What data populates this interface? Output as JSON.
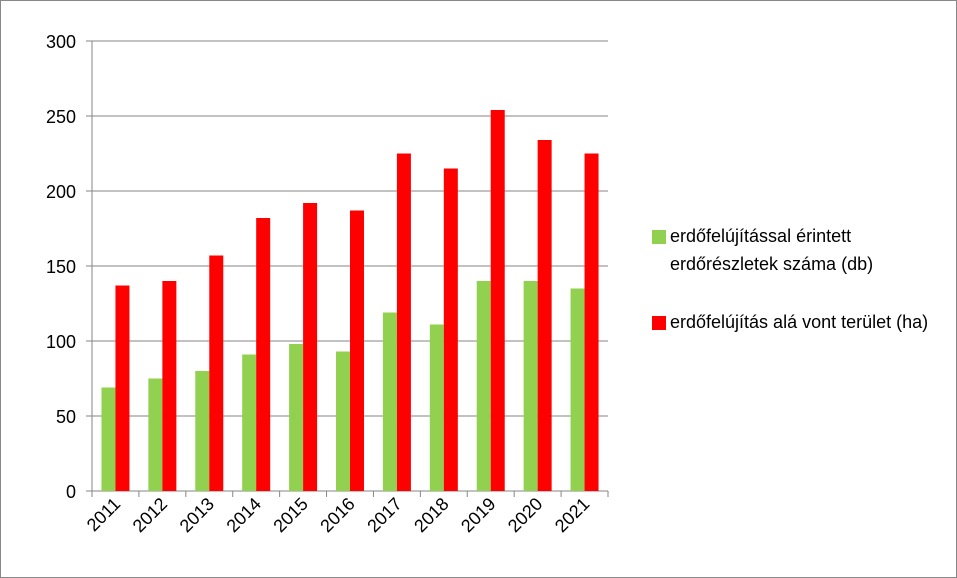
{
  "chart_data": {
    "type": "bar",
    "categories": [
      "2011",
      "2012",
      "2013",
      "2014",
      "2015",
      "2016",
      "2017",
      "2018",
      "2019",
      "2020",
      "2021"
    ],
    "series": [
      {
        "name": "erdőfelújítással érintett erdőrészletek száma (db)",
        "color": "#92d050",
        "values": [
          69,
          75,
          80,
          91,
          98,
          93,
          119,
          111,
          140,
          140,
          135
        ]
      },
      {
        "name": "erdőfelújítás alá vont terület (ha)",
        "color": "#ff0000",
        "values": [
          137,
          140,
          157,
          182,
          192,
          187,
          225,
          215,
          254,
          234,
          225
        ]
      }
    ],
    "ylim": [
      0,
      300
    ],
    "yticks": [
      0,
      50,
      100,
      150,
      200,
      250,
      300
    ],
    "grid": true,
    "legend": "right"
  }
}
